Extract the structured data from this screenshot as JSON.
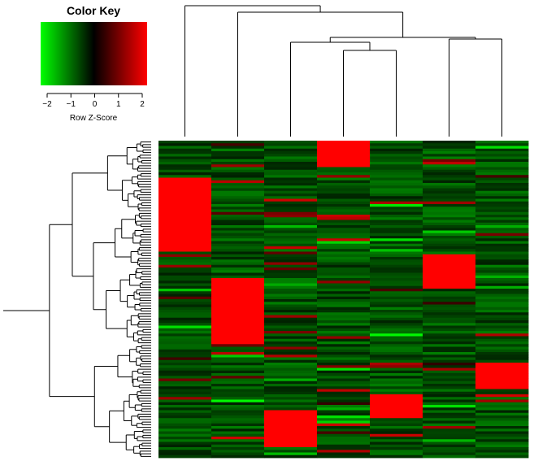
{
  "chart_data": {
    "type": "heatmap",
    "color_key": {
      "title": "Color Key",
      "axis_label": "Row Z-Score",
      "range": [
        -2.4,
        2.4
      ],
      "ticks": [
        -2,
        -1,
        0,
        1,
        2
      ],
      "tick_labels": [
        "−2",
        "−1",
        "0",
        "1",
        "2"
      ],
      "colors": {
        "low": "#00ff00",
        "mid": "#000000",
        "high": "#ff0000"
      }
    },
    "columns": 7,
    "rows": 120,
    "row_dendrogram": true,
    "column_dendrogram": true,
    "row_labels": [],
    "column_labels": [],
    "high_blocks": [
      {
        "column": 1,
        "rows": [
          14,
          41
        ]
      },
      {
        "column": 2,
        "rows": [
          52,
          76
        ]
      },
      {
        "column": 3,
        "rows": [
          102,
          115
        ]
      },
      {
        "column": 4,
        "rows": [
          0,
          9
        ]
      },
      {
        "column": 5,
        "rows": [
          96,
          104
        ]
      },
      {
        "column": 6,
        "rows": [
          43,
          55
        ]
      },
      {
        "column": 7,
        "rows": [
          84,
          93
        ]
      }
    ]
  }
}
